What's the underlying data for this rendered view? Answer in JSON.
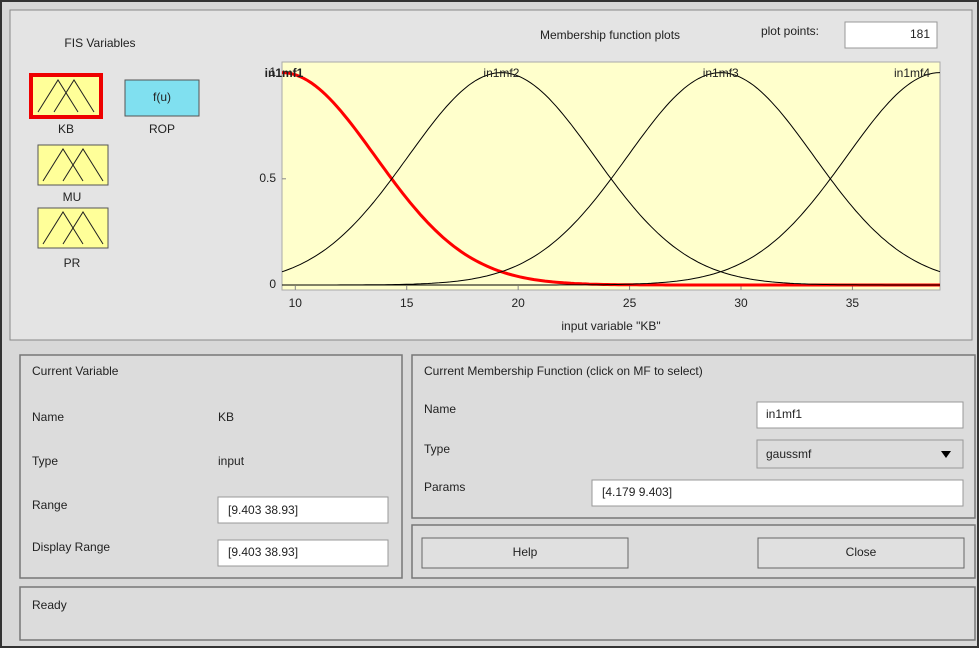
{
  "fis_variables": {
    "title": "FIS Variables",
    "inputs": [
      "KB",
      "MU",
      "PR"
    ],
    "output_function": "f(u)",
    "output": "ROP"
  },
  "plot": {
    "title": "Membership function plots",
    "plot_points_label": "plot points:",
    "plot_points": "181",
    "xlabel": "input variable \"KB\"",
    "xlim": [
      9.403,
      38.93
    ],
    "ylim": [
      0,
      1.05
    ],
    "xticks": [
      10,
      15,
      20,
      25,
      30,
      35
    ],
    "yticks": [
      0,
      0.5,
      1
    ],
    "mfs": [
      {
        "name": "in1mf1",
        "color": "#ff0000",
        "params": [
          4.179,
          9.403
        ]
      },
      {
        "name": "in1mf2",
        "color": "#000000",
        "params": [
          4.179,
          19.25
        ]
      },
      {
        "name": "in1mf3",
        "color": "#000000",
        "params": [
          4.179,
          29.09
        ]
      },
      {
        "name": "in1mf4",
        "color": "#000000",
        "params": [
          4.179,
          38.93
        ]
      }
    ]
  },
  "current_variable": {
    "title": "Current Variable",
    "name_label": "Name",
    "name": "KB",
    "type_label": "Type",
    "type": "input",
    "range_label": "Range",
    "range": "[9.403 38.93]",
    "display_range_label": "Display Range",
    "display_range": "[9.403 38.93]"
  },
  "current_mf": {
    "title": "Current Membership Function (click on MF to select)",
    "name_label": "Name",
    "name": "in1mf1",
    "type_label": "Type",
    "type": "gaussmf",
    "params_label": "Params",
    "params": "[4.179 9.403]"
  },
  "buttons": {
    "help": "Help",
    "close": "Close"
  },
  "status": "Ready"
}
